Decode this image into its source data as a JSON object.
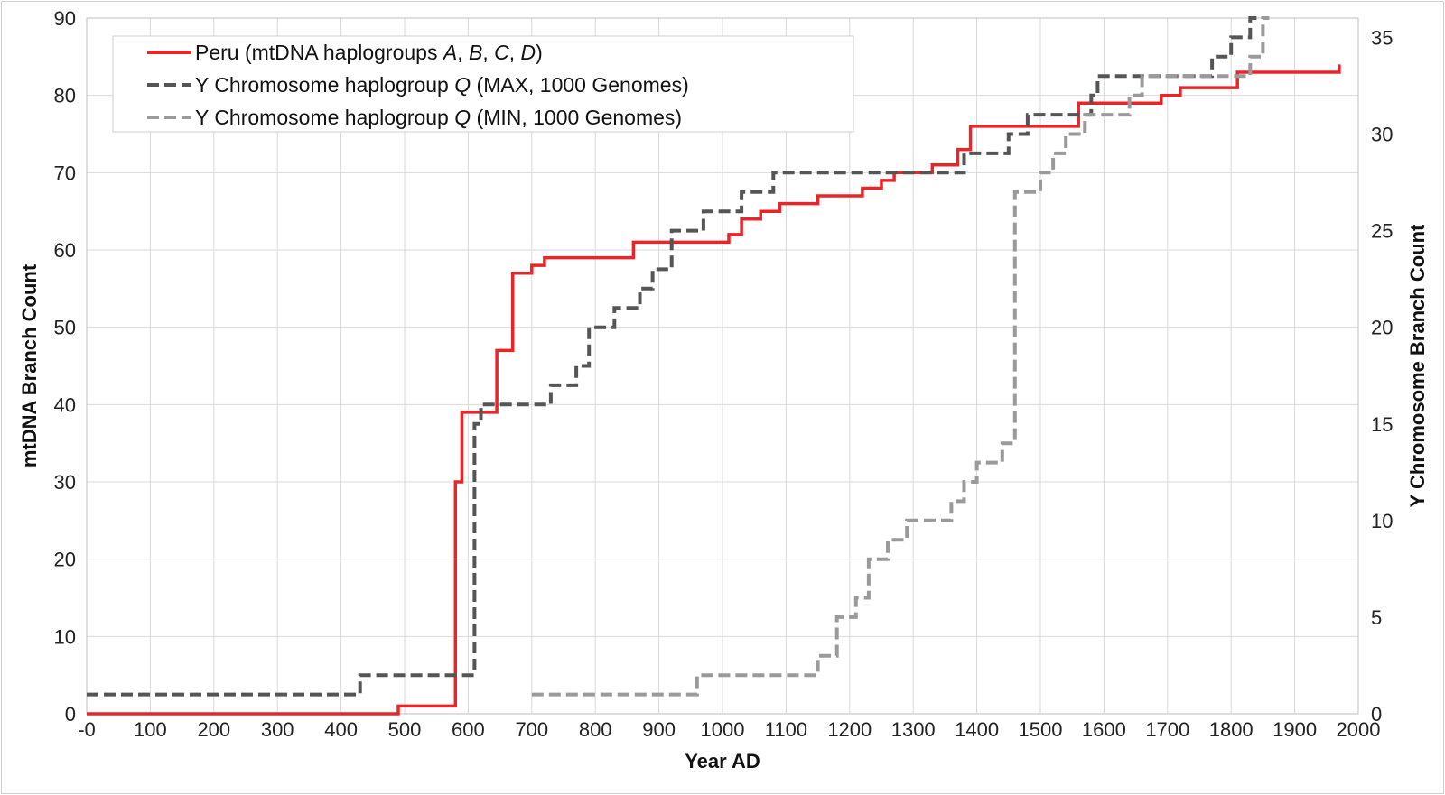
{
  "chart_data": {
    "type": "line",
    "step": true,
    "title": "",
    "xlabel": "Year AD",
    "ylabel": "mtDNA Branch Count",
    "y2label": "Y Chromosome  Branch Count",
    "xlim": [
      0,
      2000
    ],
    "ylim": [
      0,
      90
    ],
    "y2lim": [
      0,
      36
    ],
    "x_ticks": [
      "-0",
      "100",
      "200",
      "300",
      "400",
      "500",
      "600",
      "700",
      "800",
      "900",
      "1000",
      "1100",
      "1200",
      "1300",
      "1400",
      "1500",
      "1600",
      "1700",
      "1800",
      "1900",
      "2000"
    ],
    "y_ticks": [
      "0",
      "10",
      "20",
      "30",
      "40",
      "50",
      "60",
      "70",
      "80",
      "90"
    ],
    "y2_ticks": [
      "0",
      "5",
      "10",
      "15",
      "20",
      "25",
      "30",
      "35"
    ],
    "grid": true,
    "legend_position": "top-left",
    "series": [
      {
        "name": "Peru (mtDNA haplogroups A, B, C, D)",
        "axis": "left",
        "color": "#e8262a",
        "style": "solid",
        "x": [
          0,
          490,
          580,
          590,
          645,
          670,
          700,
          720,
          860,
          1010,
          1030,
          1060,
          1090,
          1150,
          1220,
          1250,
          1270,
          1330,
          1370,
          1390,
          1440,
          1560,
          1580,
          1690,
          1720,
          1810,
          1970
        ],
        "y": [
          0,
          1,
          30,
          39,
          47,
          57,
          58,
          59,
          61,
          62,
          64,
          65,
          66,
          67,
          68,
          69,
          70,
          71,
          73,
          76,
          76,
          79,
          79,
          80,
          81,
          83,
          84
        ]
      },
      {
        "name": "Y Chromosome haplogroup Q (MAX, 1000 Genomes)",
        "axis": "right",
        "color": "#555555",
        "style": "dashed",
        "x": [
          0,
          430,
          610,
          620,
          700,
          730,
          770,
          790,
          830,
          870,
          890,
          920,
          970,
          1030,
          1080,
          1110,
          1380,
          1450,
          1480,
          1580,
          1590,
          1600,
          1770,
          1800,
          1830,
          1840
        ],
        "y": [
          1,
          2,
          15,
          16,
          16,
          17,
          18,
          20,
          21,
          22,
          23,
          25,
          26,
          27,
          28,
          28,
          29,
          30,
          31,
          32,
          33,
          33,
          34,
          35,
          36,
          36
        ]
      },
      {
        "name": "Y Chromosome haplogroup Q (MIN, 1000 Genomes)",
        "axis": "right",
        "color": "#9a9a9a",
        "style": "dashed",
        "x": [
          700,
          960,
          1150,
          1180,
          1210,
          1230,
          1260,
          1290,
          1360,
          1380,
          1400,
          1440,
          1460,
          1500,
          1520,
          1540,
          1570,
          1640,
          1660,
          1830,
          1850,
          1860
        ],
        "y": [
          1,
          2,
          3,
          5,
          6,
          8,
          9,
          10,
          11,
          12,
          13,
          14,
          27,
          28,
          29,
          30,
          31,
          32,
          33,
          34,
          36,
          36
        ]
      }
    ]
  }
}
